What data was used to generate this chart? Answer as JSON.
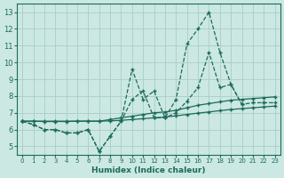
{
  "xlabel": "Humidex (Indice chaleur)",
  "background_color": "#cce8e2",
  "grid_color": "#aacdc7",
  "line_color": "#1a6b5a",
  "x_values": [
    0,
    1,
    2,
    3,
    4,
    5,
    6,
    7,
    8,
    9,
    10,
    11,
    12,
    13,
    14,
    15,
    16,
    17,
    18,
    19,
    20,
    21,
    22,
    23
  ],
  "line1_y": [
    6.5,
    6.3,
    6.0,
    6.0,
    5.8,
    5.8,
    6.0,
    4.7,
    5.6,
    6.5,
    9.6,
    7.8,
    8.3,
    6.7,
    7.8,
    11.1,
    12.0,
    13.0,
    10.6,
    8.7,
    7.5,
    7.6,
    7.6,
    7.6
  ],
  "line2_y": [
    6.5,
    6.3,
    6.0,
    6.0,
    5.8,
    5.8,
    6.0,
    4.7,
    5.6,
    6.5,
    7.8,
    8.3,
    6.7,
    6.7,
    7.0,
    7.7,
    8.5,
    10.6,
    8.5,
    8.7,
    7.5,
    null,
    7.6,
    null
  ],
  "line3_y": [
    6.5,
    6.5,
    6.5,
    6.5,
    6.5,
    6.5,
    6.5,
    6.5,
    6.6,
    6.7,
    6.8,
    6.9,
    7.0,
    7.05,
    7.15,
    7.3,
    7.45,
    7.55,
    7.65,
    7.75,
    7.8,
    7.85,
    7.9,
    7.95
  ],
  "line4_y": [
    6.5,
    6.5,
    6.48,
    6.48,
    6.48,
    6.5,
    6.5,
    6.5,
    6.52,
    6.55,
    6.6,
    6.65,
    6.7,
    6.75,
    6.82,
    6.9,
    6.98,
    7.05,
    7.13,
    7.2,
    7.25,
    7.3,
    7.35,
    7.4
  ],
  "ylim": [
    4.5,
    13.5
  ],
  "xlim": [
    -0.5,
    23.5
  ],
  "yticks": [
    5,
    6,
    7,
    8,
    9,
    10,
    11,
    12,
    13
  ]
}
